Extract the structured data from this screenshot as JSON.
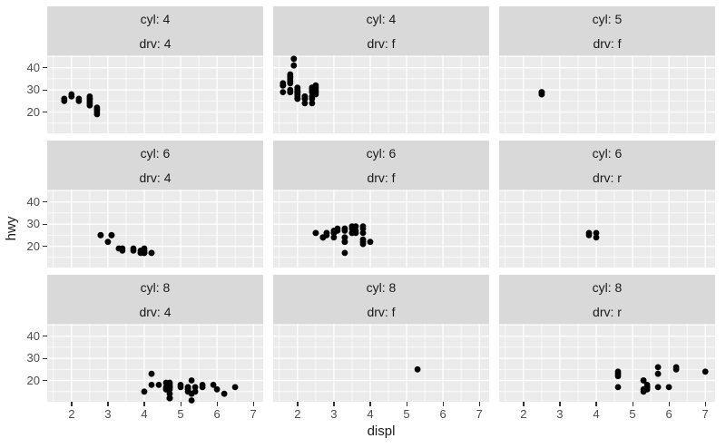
{
  "style": {
    "panel_bg": "#ebebeb",
    "strip_bg": "#d9d9d9",
    "grid_color": "#ffffff",
    "point_color": "#000000",
    "axis_text_color": "#4d4d4d",
    "strip_text_color": "#1a1a1a",
    "axis_title_color": "#1a1a1a",
    "tick_mark_color": "#333333"
  },
  "chart_data": {
    "type": "scatter",
    "title": "",
    "xlabel": "displ",
    "ylabel": "hwy",
    "xlim": [
      1.33,
      7.27
    ],
    "ylim": [
      10.4,
      45.6
    ],
    "x_ticks": [
      2,
      3,
      4,
      5,
      6,
      7
    ],
    "y_ticks": [
      20,
      30,
      40
    ],
    "x_minor": [
      1.5,
      2.5,
      3.5,
      4.5,
      5.5,
      6.5
    ],
    "y_minor": [
      15,
      25,
      35,
      45
    ],
    "grid": true,
    "legend": "none",
    "facet_layout": {
      "rows": 3,
      "cols": 3,
      "strip_rows": 2
    },
    "facets": [
      {
        "strips": [
          "cyl: 4",
          "drv: 4"
        ],
        "points": [
          [
            1.8,
            26
          ],
          [
            1.8,
            25
          ],
          [
            2.0,
            28
          ],
          [
            2.0,
            27
          ],
          [
            2.2,
            26
          ],
          [
            2.2,
            25
          ],
          [
            2.5,
            27
          ],
          [
            2.5,
            26
          ],
          [
            2.5,
            26
          ],
          [
            2.5,
            25
          ],
          [
            2.5,
            24
          ],
          [
            2.5,
            23
          ],
          [
            2.7,
            22
          ],
          [
            2.7,
            21
          ],
          [
            2.7,
            20
          ],
          [
            2.7,
            19
          ]
        ]
      },
      {
        "strips": [
          "cyl: 4",
          "drv: f"
        ],
        "points": [
          [
            1.6,
            33
          ],
          [
            1.6,
            32
          ],
          [
            1.6,
            32
          ],
          [
            1.6,
            32
          ],
          [
            1.6,
            29
          ],
          [
            1.8,
            37
          ],
          [
            1.8,
            36
          ],
          [
            1.8,
            36
          ],
          [
            1.8,
            35
          ],
          [
            1.8,
            34
          ],
          [
            1.8,
            33
          ],
          [
            1.8,
            30
          ],
          [
            1.8,
            29
          ],
          [
            1.8,
            29
          ],
          [
            1.9,
            44
          ],
          [
            1.9,
            44
          ],
          [
            1.9,
            41
          ],
          [
            2.0,
            31
          ],
          [
            2.0,
            30
          ],
          [
            2.0,
            29
          ],
          [
            2.0,
            29
          ],
          [
            2.0,
            29
          ],
          [
            2.0,
            28
          ],
          [
            2.0,
            28
          ],
          [
            2.0,
            27
          ],
          [
            2.0,
            26
          ],
          [
            2.0,
            26
          ],
          [
            2.0,
            26
          ],
          [
            2.0,
            26
          ],
          [
            2.2,
            27
          ],
          [
            2.2,
            27
          ],
          [
            2.2,
            26
          ],
          [
            2.2,
            26
          ],
          [
            2.2,
            24
          ],
          [
            2.4,
            31
          ],
          [
            2.4,
            31
          ],
          [
            2.4,
            30
          ],
          [
            2.4,
            30
          ],
          [
            2.4,
            30
          ],
          [
            2.4,
            29
          ],
          [
            2.4,
            27
          ],
          [
            2.4,
            27
          ],
          [
            2.4,
            26
          ],
          [
            2.4,
            24
          ],
          [
            2.5,
            32
          ],
          [
            2.5,
            31
          ],
          [
            2.5,
            30
          ],
          [
            2.5,
            29
          ],
          [
            2.5,
            29
          ],
          [
            2.5,
            28
          ]
        ]
      },
      {
        "strips": [
          "cyl: 5",
          "drv: f"
        ],
        "points": [
          [
            2.5,
            29
          ],
          [
            2.5,
            29
          ],
          [
            2.5,
            28
          ],
          [
            2.5,
            28
          ]
        ]
      },
      {
        "strips": [
          "cyl: 6",
          "drv: 4"
        ],
        "points": [
          [
            2.8,
            25
          ],
          [
            2.8,
            25
          ],
          [
            3.1,
            25
          ],
          [
            3.1,
            25
          ],
          [
            3.0,
            22
          ],
          [
            3.3,
            19
          ],
          [
            3.4,
            19
          ],
          [
            3.4,
            18
          ],
          [
            3.7,
            19
          ],
          [
            3.7,
            18
          ],
          [
            3.9,
            18
          ],
          [
            3.9,
            17
          ],
          [
            3.9,
            17
          ],
          [
            4.0,
            19
          ],
          [
            4.0,
            18
          ],
          [
            4.0,
            17
          ],
          [
            4.0,
            17
          ],
          [
            4.0,
            17
          ],
          [
            4.2,
            17
          ],
          [
            4.2,
            17
          ]
        ]
      },
      {
        "strips": [
          "cyl: 6",
          "drv: f"
        ],
        "points": [
          [
            2.5,
            26
          ],
          [
            2.5,
            26
          ],
          [
            2.7,
            24
          ],
          [
            2.7,
            24
          ],
          [
            2.7,
            24
          ],
          [
            2.8,
            26
          ],
          [
            2.8,
            26
          ],
          [
            2.8,
            25
          ],
          [
            3.0,
            27
          ],
          [
            3.0,
            26
          ],
          [
            3.0,
            26
          ],
          [
            3.0,
            24
          ],
          [
            3.1,
            28
          ],
          [
            3.1,
            27
          ],
          [
            3.3,
            28
          ],
          [
            3.3,
            27
          ],
          [
            3.3,
            24
          ],
          [
            3.3,
            24
          ],
          [
            3.3,
            22
          ],
          [
            3.3,
            22
          ],
          [
            3.3,
            17
          ],
          [
            3.5,
            29
          ],
          [
            3.5,
            28
          ],
          [
            3.5,
            26
          ],
          [
            3.5,
            26
          ],
          [
            3.6,
            29
          ],
          [
            3.6,
            27
          ],
          [
            3.6,
            26
          ],
          [
            3.8,
            29
          ],
          [
            3.8,
            28
          ],
          [
            3.8,
            26
          ],
          [
            3.8,
            23
          ],
          [
            3.8,
            22
          ],
          [
            3.8,
            21
          ],
          [
            4.0,
            22
          ]
        ]
      },
      {
        "strips": [
          "cyl: 6",
          "drv: r"
        ],
        "points": [
          [
            3.8,
            26
          ],
          [
            3.8,
            25
          ],
          [
            4.0,
            26
          ],
          [
            4.0,
            24
          ]
        ]
      },
      {
        "strips": [
          "cyl: 8",
          "drv: 4"
        ],
        "points": [
          [
            4.0,
            15
          ],
          [
            4.2,
            23
          ],
          [
            4.2,
            18
          ],
          [
            4.4,
            18
          ],
          [
            4.6,
            19
          ],
          [
            4.6,
            17
          ],
          [
            4.6,
            16
          ],
          [
            4.6,
            16
          ],
          [
            4.7,
            19
          ],
          [
            4.7,
            18
          ],
          [
            4.7,
            17
          ],
          [
            4.7,
            17
          ],
          [
            4.7,
            17
          ],
          [
            4.7,
            16
          ],
          [
            4.7,
            14
          ],
          [
            4.7,
            12
          ],
          [
            4.7,
            12
          ],
          [
            4.7,
            12
          ],
          [
            5.0,
            18
          ],
          [
            5.0,
            17
          ],
          [
            5.2,
            17
          ],
          [
            5.2,
            17
          ],
          [
            5.2,
            16
          ],
          [
            5.2,
            16
          ],
          [
            5.2,
            15
          ],
          [
            5.3,
            20
          ],
          [
            5.3,
            14
          ],
          [
            5.3,
            11
          ],
          [
            5.4,
            17
          ],
          [
            5.4,
            15
          ],
          [
            5.6,
            18
          ],
          [
            5.6,
            17
          ],
          [
            5.9,
            18
          ],
          [
            6.0,
            16
          ],
          [
            6.2,
            14
          ],
          [
            6.5,
            17
          ]
        ]
      },
      {
        "strips": [
          "cyl: 8",
          "drv: f"
        ],
        "points": [
          [
            5.3,
            25
          ]
        ]
      },
      {
        "strips": [
          "cyl: 8",
          "drv: r"
        ],
        "points": [
          [
            4.6,
            24
          ],
          [
            4.6,
            23
          ],
          [
            4.6,
            22
          ],
          [
            4.6,
            17
          ],
          [
            5.3,
            20
          ],
          [
            5.3,
            20
          ],
          [
            5.3,
            16
          ],
          [
            5.3,
            15
          ],
          [
            5.4,
            18
          ],
          [
            5.4,
            17
          ],
          [
            5.4,
            17
          ],
          [
            5.4,
            16
          ],
          [
            5.7,
            26
          ],
          [
            5.7,
            23
          ],
          [
            5.7,
            17
          ],
          [
            6.0,
            17
          ],
          [
            6.2,
            26
          ],
          [
            6.2,
            25
          ],
          [
            7.0,
            24
          ]
        ]
      }
    ]
  }
}
